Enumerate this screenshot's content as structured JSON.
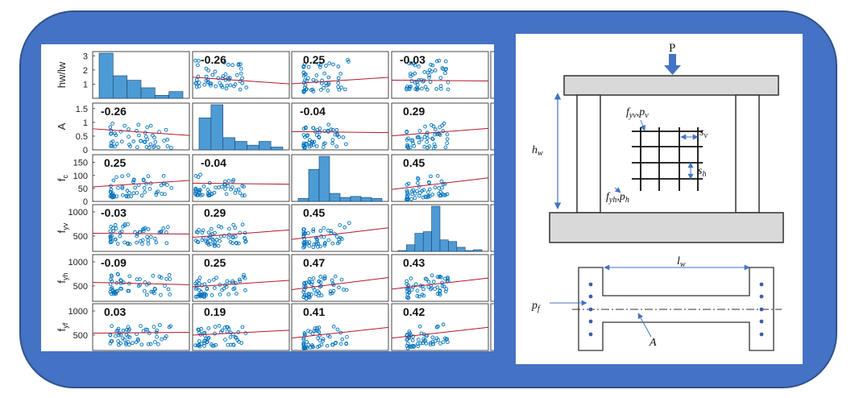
{
  "colors": {
    "frame": "#4472C4",
    "frame_border": "#2F528F",
    "marker": "#0072BD",
    "bar_fill": "#4D9BD5",
    "fit_line": "#B2182B",
    "axis": "#333333",
    "beam_fill": "#D9D9D9"
  },
  "chart_data": {
    "type": "scatter",
    "title": "",
    "variables": [
      {
        "label": "hw/lw",
        "ticks": [
          "1",
          "2",
          "3"
        ],
        "range": [
          0,
          3.3
        ]
      },
      {
        "label": "A",
        "ticks": [
          "0",
          "0.5",
          "1",
          "1.5"
        ],
        "range": [
          0,
          1.7
        ]
      },
      {
        "label": "f",
        "sub": "c",
        "ticks": [
          "0",
          "50",
          "100",
          "150"
        ],
        "range": [
          0,
          180
        ]
      },
      {
        "label": "f",
        "sub": "yv",
        "ticks": [
          "500",
          "1000"
        ],
        "range": [
          180,
          1150
        ]
      },
      {
        "label": "f",
        "sub": "yh",
        "ticks": [
          "500",
          "1000"
        ],
        "range": [
          180,
          1150
        ]
      },
      {
        "label": "f",
        "sub": "yf",
        "ticks": [
          "500",
          "1000"
        ],
        "range": [
          180,
          1150
        ]
      }
    ],
    "correlations": [
      [
        null,
        -0.26,
        0.25,
        -0.03
      ],
      [
        -0.26,
        null,
        -0.04,
        0.29
      ],
      [
        0.25,
        -0.04,
        null,
        0.45
      ],
      [
        -0.03,
        0.29,
        0.45,
        null
      ],
      [
        -0.09,
        0.25,
        0.47,
        0.43
      ],
      [
        0.03,
        0.19,
        0.41,
        0.42
      ]
    ],
    "correlation_labels": [
      [
        null,
        "-0.26",
        "0.25",
        "-0.03"
      ],
      [
        "-0.26",
        null,
        "-0.04",
        "0.29"
      ],
      [
        "0.25",
        "-0.04",
        null,
        "0.45"
      ],
      [
        "-0.03",
        "0.29",
        "0.45",
        null
      ],
      [
        "-0.09",
        "0.25",
        "0.47",
        "0.43"
      ],
      [
        "0.03",
        "0.19",
        "0.41",
        "0.42"
      ]
    ],
    "histograms": {
      "0": [
        60,
        30,
        24,
        14,
        4,
        9
      ],
      "1": [
        34,
        48,
        13,
        9,
        5,
        9,
        3
      ],
      "2": [
        3,
        32,
        45,
        8,
        4,
        5,
        4,
        3
      ],
      "3": [
        1,
        8,
        22,
        24,
        55,
        14,
        12,
        5,
        1,
        2
      ]
    }
  },
  "diagram": {
    "load_label": "P",
    "height_label": "h",
    "height_sub": "w",
    "length_label": "l",
    "length_sub": "w",
    "vertical_reinf": "f",
    "vertical_reinf_sub": "yv",
    "vertical_ratio": "p",
    "vertical_ratio_sub": "v",
    "horizontal_reinf": "f",
    "horizontal_reinf_sub": "yh",
    "horizontal_ratio": "p",
    "horizontal_ratio_sub": "h",
    "vertical_spacing": "s",
    "vertical_spacing_sub": "v",
    "horizontal_spacing": "s",
    "horizontal_spacing_sub": "h",
    "flange_ratio": "p",
    "flange_ratio_sub": "f",
    "area_label": "A",
    "separator": ","
  }
}
